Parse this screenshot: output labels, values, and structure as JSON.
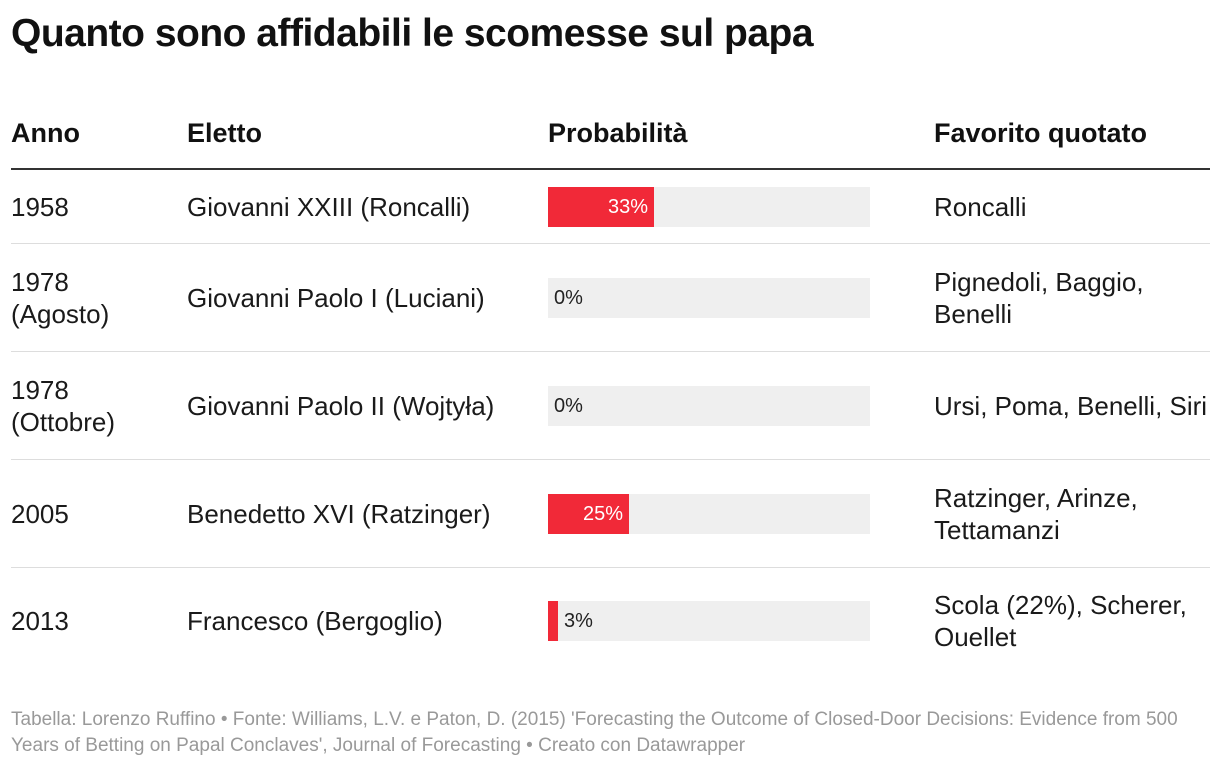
{
  "title": "Quanto sono affidabili le scomesse sul papa",
  "columns": {
    "anno": "Anno",
    "eletto": "Eletto",
    "probabilita": "Probabilità",
    "favorito": "Favorito quotato"
  },
  "chart_data": {
    "type": "table",
    "value_unit": "%",
    "xlim": [
      0,
      100
    ],
    "bar_color": "#f12938",
    "track_color": "#efefef",
    "rows": [
      {
        "anno": "1958",
        "eletto": "Giovanni XXIII (Roncalli)",
        "probabilita": 33,
        "probabilita_label": "33%",
        "favorito": "Roncalli"
      },
      {
        "anno": "1978 (Agosto)",
        "eletto": "Giovanni Paolo I (Luciani)",
        "probabilita": 0,
        "probabilita_label": "0%",
        "favorito": "Pignedoli, Baggio, Benelli"
      },
      {
        "anno": "1978 (Ottobre)",
        "eletto": "Giovanni Paolo II (Wojtyła)",
        "probabilita": 0,
        "probabilita_label": "0%",
        "favorito": "Ursi, Poma, Benelli, Siri"
      },
      {
        "anno": "2005",
        "eletto": "Benedetto XVI (Ratzinger)",
        "probabilita": 25,
        "probabilita_label": "25%",
        "favorito": "Ratzinger, Arinze, Tettamanzi"
      },
      {
        "anno": "2013",
        "eletto": "Francesco (Bergoglio)",
        "probabilita": 3,
        "probabilita_label": "3%",
        "favorito": "Scola (22%), Scherer, Ouellet"
      }
    ]
  },
  "footer": "Tabella: Lorenzo Ruffino • Fonte: Williams, L.V. e Paton, D. (2015) 'Forecasting the Outcome of Closed-Door Decisions: Evidence from 500 Years of Betting on Papal Conclaves', Journal of Forecasting • Creato con Datawrapper"
}
